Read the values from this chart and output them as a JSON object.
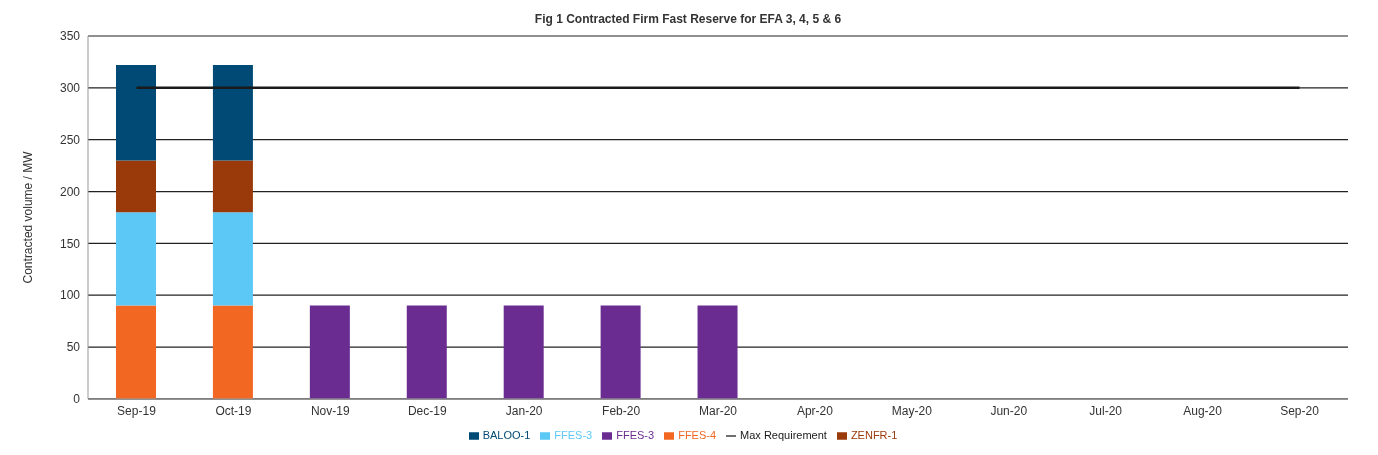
{
  "chart_data": {
    "type": "bar",
    "title": "Fig 1 Contracted Firm Fast Reserve for EFA 3, 4, 5 & 6",
    "ylabel": "Contracted volume  / MW",
    "stacked": true,
    "categories": [
      "Sep-19",
      "Oct-19",
      "Nov-19",
      "Dec-19",
      "Jan-20",
      "Feb-20",
      "Mar-20",
      "Apr-20",
      "May-20",
      "Jun-20",
      "Jul-20",
      "Aug-20",
      "Sep-20"
    ],
    "series": [
      {
        "name": "FFES-4",
        "color": "#f26722",
        "values": [
          90,
          90,
          null,
          null,
          null,
          null,
          null,
          null,
          null,
          null,
          null,
          null,
          null
        ]
      },
      {
        "name": "FFES-3",
        "color": "#5bc8f5",
        "values": [
          90,
          90,
          null,
          null,
          null,
          null,
          null,
          null,
          null,
          null,
          null,
          null,
          null
        ]
      },
      {
        "name": "FFES-3",
        "color": "#6a2c91",
        "values": [
          null,
          null,
          90,
          90,
          90,
          90,
          90,
          null,
          null,
          null,
          null,
          null,
          null
        ]
      },
      {
        "name": "ZENFR-1",
        "color": "#9a3a0a",
        "values": [
          50,
          50,
          null,
          null,
          null,
          null,
          null,
          null,
          null,
          null,
          null,
          null,
          null
        ]
      },
      {
        "name": "BALOO-1",
        "color": "#004a75",
        "values": [
          92,
          92,
          null,
          null,
          null,
          null,
          null,
          null,
          null,
          null,
          null,
          null,
          null
        ]
      },
      {
        "name": "Max Requirement",
        "type": "line",
        "color": "#1a1a1a",
        "values": [
          300,
          300,
          300,
          300,
          300,
          300,
          300,
          300,
          300,
          300,
          300,
          300,
          300
        ]
      }
    ],
    "ylim": [
      0,
      350
    ],
    "yticks": [
      0,
      50,
      100,
      150,
      200,
      250,
      300,
      350
    ],
    "grid": "y",
    "legend": "bottom",
    "marker": "none"
  }
}
